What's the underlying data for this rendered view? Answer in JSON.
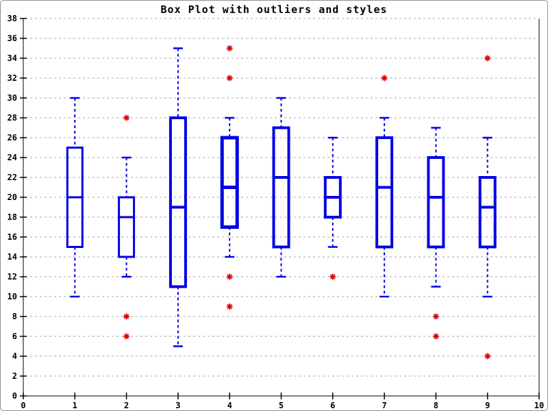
{
  "chart_data": {
    "type": "boxplot",
    "title": "Box Plot with outliers and styles",
    "xlabel": "",
    "ylabel": "",
    "xlim": [
      0,
      10
    ],
    "ylim": [
      0,
      38
    ],
    "x_ticks": [
      0,
      1,
      2,
      3,
      4,
      5,
      6,
      7,
      8,
      9,
      10
    ],
    "y_ticks": [
      0,
      2,
      4,
      6,
      8,
      10,
      12,
      14,
      16,
      18,
      20,
      22,
      24,
      26,
      28,
      30,
      32,
      34,
      36,
      38
    ],
    "grid": "horizontal-dashed",
    "legend": "none",
    "series": [
      {
        "x": 1,
        "whisker_low": 10,
        "q1": 15,
        "median": 20,
        "q3": 25,
        "whisker_high": 30,
        "outliers": [],
        "line_width": 3
      },
      {
        "x": 2,
        "whisker_low": 12,
        "q1": 14,
        "median": 18,
        "q3": 20,
        "whisker_high": 24,
        "outliers": [
          28,
          8,
          6
        ],
        "line_width": 3
      },
      {
        "x": 3,
        "whisker_low": 5,
        "q1": 11,
        "median": 19,
        "q3": 28,
        "whisker_high": 35,
        "outliers": [],
        "line_width": 4
      },
      {
        "x": 4,
        "whisker_low": 14,
        "q1": 17,
        "median": 21,
        "q3": 26,
        "whisker_high": 28,
        "outliers": [
          35,
          32,
          12,
          9
        ],
        "line_width": 5
      },
      {
        "x": 5,
        "whisker_low": 12,
        "q1": 15,
        "median": 22,
        "q3": 27,
        "whisker_high": 30,
        "outliers": [],
        "line_width": 4
      },
      {
        "x": 6,
        "whisker_low": 15,
        "q1": 18,
        "median": 20,
        "q3": 22,
        "whisker_high": 26,
        "outliers": [
          12
        ],
        "line_width": 4
      },
      {
        "x": 7,
        "whisker_low": 10,
        "q1": 15,
        "median": 21,
        "q3": 26,
        "whisker_high": 28,
        "outliers": [
          32
        ],
        "line_width": 4
      },
      {
        "x": 8,
        "whisker_low": 11,
        "q1": 15,
        "median": 20,
        "q3": 24,
        "whisker_high": 27,
        "outliers": [
          8,
          6
        ],
        "line_width": 4
      },
      {
        "x": 9,
        "whisker_low": 10,
        "q1": 15,
        "median": 19,
        "q3": 22,
        "whisker_high": 26,
        "outliers": [
          34,
          4
        ],
        "line_width": 4
      }
    ],
    "colors": {
      "box": "#0000e6",
      "median": "#0000e6",
      "whisker": "#0000e6",
      "outlier": "#dd0000",
      "grid": "#b8b8b8",
      "axis": "#000000",
      "background": "#ffffff"
    }
  }
}
